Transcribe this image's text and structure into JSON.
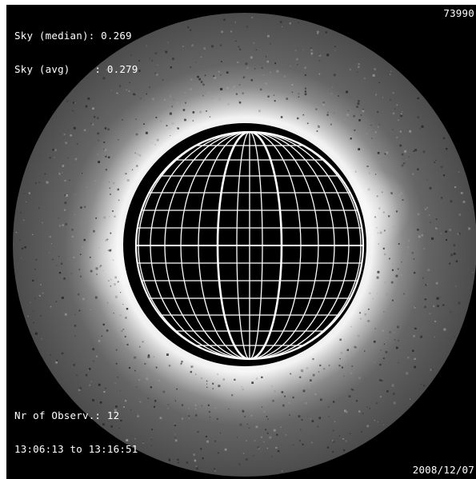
{
  "header": {
    "sky_median": "Sky (median): 0.269",
    "sky_avg": "Sky (avg)    : 0.279",
    "frame_id": "73990"
  },
  "footer": {
    "observations": "Nr of Observ.: 12",
    "time_range": "13:06:13 to 13:16:51",
    "date": "2008/12/07"
  },
  "colors": {
    "background": "#000000",
    "corona_disk": "#5a5a5a",
    "corona_glow": "#ffffff",
    "occulter": "#000000",
    "grid": "#ffffff"
  }
}
